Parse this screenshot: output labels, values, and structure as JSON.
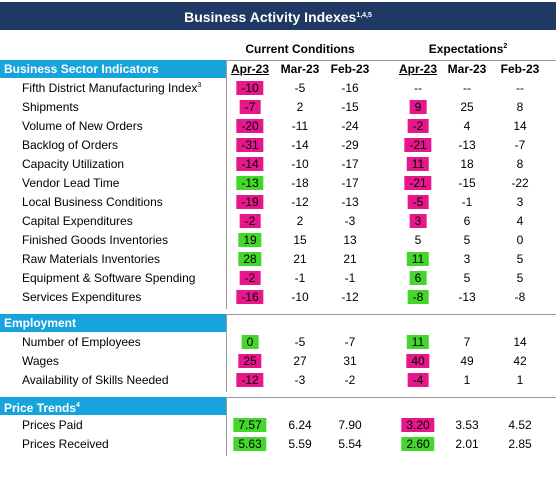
{
  "title": "Business Activity Indexes",
  "title_note": "1,4,5",
  "groups": [
    {
      "label": "Current Conditions"
    },
    {
      "label": "Expectations",
      "note": "2"
    }
  ],
  "columns": [
    "Apr-23",
    "Mar-23",
    "Feb-23",
    "Apr-23",
    "Mar-23",
    "Feb-23"
  ],
  "sections": [
    {
      "title": "Business Sector Indicators",
      "rows": [
        {
          "label": "Fifth District Manufacturing Index",
          "note": "3",
          "values": [
            "-10",
            "-5",
            "-16",
            "--",
            "--",
            "--"
          ],
          "highlight": [
            "#e5178a",
            null
          ]
        },
        {
          "label": "Shipments",
          "values": [
            "-7",
            "2",
            "-15",
            "9",
            "25",
            "8"
          ],
          "highlight": [
            "#e5178a",
            "#e5178a"
          ]
        },
        {
          "label": "Volume of New Orders",
          "values": [
            "-20",
            "-11",
            "-24",
            "-2",
            "4",
            "14"
          ],
          "highlight": [
            "#e5178a",
            "#e5178a"
          ]
        },
        {
          "label": "Backlog of Orders",
          "values": [
            "-31",
            "-14",
            "-29",
            "-21",
            "-13",
            "-7"
          ],
          "highlight": [
            "#e5178a",
            "#e5178a"
          ]
        },
        {
          "label": "Capacity Utilization",
          "values": [
            "-14",
            "-10",
            "-17",
            "11",
            "18",
            "8"
          ],
          "highlight": [
            "#e5178a",
            "#e5178a"
          ]
        },
        {
          "label": "Vendor Lead Time",
          "values": [
            "-13",
            "-18",
            "-17",
            "-21",
            "-15",
            "-22"
          ],
          "highlight": [
            "#44d62c",
            "#e5178a"
          ]
        },
        {
          "label": "Local Business Conditions",
          "values": [
            "-19",
            "-12",
            "-13",
            "-5",
            "-1",
            "3"
          ],
          "highlight": [
            "#e5178a",
            "#e5178a"
          ]
        },
        {
          "label": "Capital Expenditures",
          "values": [
            "-2",
            "2",
            "-3",
            "3",
            "6",
            "4"
          ],
          "highlight": [
            "#e5178a",
            "#e5178a"
          ]
        },
        {
          "label": "Finished Goods Inventories",
          "values": [
            "19",
            "15",
            "13",
            "5",
            "5",
            "0"
          ],
          "highlight": [
            "#44d62c",
            null
          ]
        },
        {
          "label": "Raw Materials Inventories",
          "values": [
            "28",
            "21",
            "21",
            "11",
            "3",
            "5"
          ],
          "highlight": [
            "#44d62c",
            "#44d62c"
          ]
        },
        {
          "label": "Equipment & Software Spending",
          "values": [
            "-2",
            "-1",
            "-1",
            "6",
            "5",
            "5"
          ],
          "highlight": [
            "#e5178a",
            "#44d62c"
          ]
        },
        {
          "label": "Services Expenditures",
          "values": [
            "-16",
            "-10",
            "-12",
            "-8",
            "-13",
            "-8"
          ],
          "highlight": [
            "#e5178a",
            "#44d62c"
          ]
        }
      ]
    },
    {
      "title": "Employment",
      "rows": [
        {
          "label": "Number of Employees",
          "values": [
            "0",
            "-5",
            "-7",
            "11",
            "7",
            "14"
          ],
          "highlight": [
            "#44d62c",
            "#44d62c"
          ]
        },
        {
          "label": "Wages",
          "values": [
            "25",
            "27",
            "31",
            "40",
            "49",
            "42"
          ],
          "highlight": [
            "#e5178a",
            "#e5178a"
          ]
        },
        {
          "label": "Availability of Skills Needed",
          "values": [
            "-12",
            "-3",
            "-2",
            "-4",
            "1",
            "1"
          ],
          "highlight": [
            "#e5178a",
            "#e5178a"
          ]
        }
      ]
    },
    {
      "title": "Price Trends",
      "note": "4",
      "rows": [
        {
          "label": "Prices Paid",
          "values": [
            "7.57",
            "6.24",
            "7.90",
            "3.20",
            "3.53",
            "4.52"
          ],
          "highlight": [
            "#44d62c",
            "#e5178a"
          ]
        },
        {
          "label": "Prices Received",
          "values": [
            "5.63",
            "5.59",
            "5.54",
            "2.60",
            "2.01",
            "2.85"
          ],
          "highlight": [
            "#44d62c",
            "#44d62c"
          ]
        }
      ]
    }
  ]
}
